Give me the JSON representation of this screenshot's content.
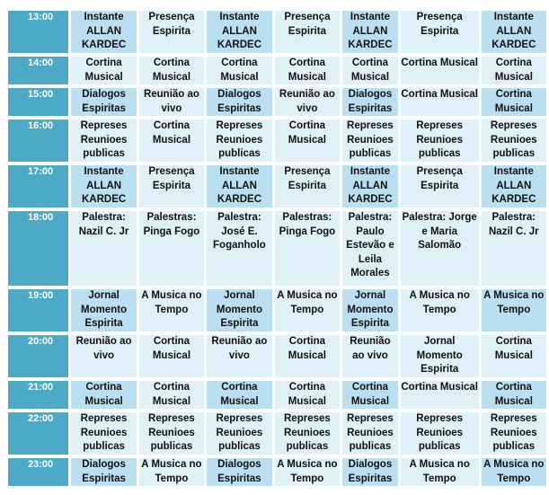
{
  "rows": [
    {
      "time": "13:00",
      "cells": [
        "Instante ALLAN KARDEC",
        "Presença Espirita",
        "Instante ALLAN KARDEC",
        "Presença Espirita",
        "Instante ALLAN KARDEC",
        "Presença Espirita",
        "Instante ALLAN KARDEC"
      ]
    },
    {
      "time": "14:00",
      "cells": [
        "Cortina Musical",
        "Cortina Musical",
        "Cortina Musical",
        "Cortina Musical",
        "Cortina Musical",
        "Cortina Musical",
        "Cortina Musical"
      ]
    },
    {
      "time": "15:00",
      "cells": [
        "Dialogos Espiritas",
        "Reunião ao vivo",
        "Dialogos Espiritas",
        "Reunião ao vivo",
        "Dialogos Espiritas",
        "Cortina Musical",
        "Cortina Musical"
      ]
    },
    {
      "time": "16:00",
      "cells": [
        "Represes Reunioes publicas",
        "Cortina Musical",
        "Represes Reunioes publicas",
        "Cortina Musical",
        "Represes Reunioes publicas",
        "Represes Reunioes publicas",
        "Represes Reunioes publicas"
      ]
    },
    {
      "time": "17:00",
      "cells": [
        "Instante ALLAN KARDEC",
        "Presença Espirita",
        "Instante ALLAN KARDEC",
        "Presença Espirita",
        "Instante ALLAN KARDEC",
        "Presença Espirita",
        "Instante ALLAN KARDEC"
      ]
    },
    {
      "time": "18:00",
      "cells": [
        "Palestra: Nazil C. Jr",
        "Palestras: Pinga Fogo",
        "Palestra: José E. Foganholo",
        "Palestras: Pinga Fogo",
        "Palestra: Paulo Estevão e Leila Morales",
        "Palestra: Jorge e Maria Salomão",
        "Palestra: Nazil C. Jr"
      ]
    },
    {
      "time": "19:00",
      "cells": [
        "Jornal Momento Espirita",
        "A Musica no Tempo",
        "Jornal Momento Espirita",
        "A Musica no Tempo",
        "Jornal Momento Espirita",
        "A Musica no Tempo",
        "A Musica no Tempo"
      ]
    },
    {
      "time": "20:00",
      "cells": [
        "Reunião ao vivo",
        "Cortina Musical",
        "Reunião ao vivo",
        "Cortina Musical",
        "Reunião ao vivo",
        "Jornal Momento Espirita",
        "Cortina Musical"
      ]
    },
    {
      "time": "21:00",
      "cells": [
        "Cortina Musical",
        "Cortina Musical",
        "Cortina Musical",
        "Cortina Musical",
        "Cortina Musical",
        "Cortina Musical",
        "Cortina Musical"
      ]
    },
    {
      "time": "22:00",
      "cells": [
        "Represes Reunioes publicas",
        "Represes Reunioes publicas",
        "Represes Reunioes publicas",
        "Represes Reunioes publicas",
        "Represes Reunioes publicas",
        "Represes Reunioes publicas",
        "Represes Reunioes publicas"
      ]
    },
    {
      "time": "23:00",
      "cells": [
        "Dialogos Espiritas",
        "A Musica no Tempo",
        "Dialogos Espiritas",
        "A Musica no Tempo",
        "Dialogos Espiritas",
        "A Musica no Tempo",
        "A Musica no Tempo"
      ]
    }
  ],
  "colors": {
    "time_column": "#4daac6",
    "cell_dark": "#b9dff0",
    "cell_light": "#dff0f8",
    "time_text": "#ffffff"
  }
}
